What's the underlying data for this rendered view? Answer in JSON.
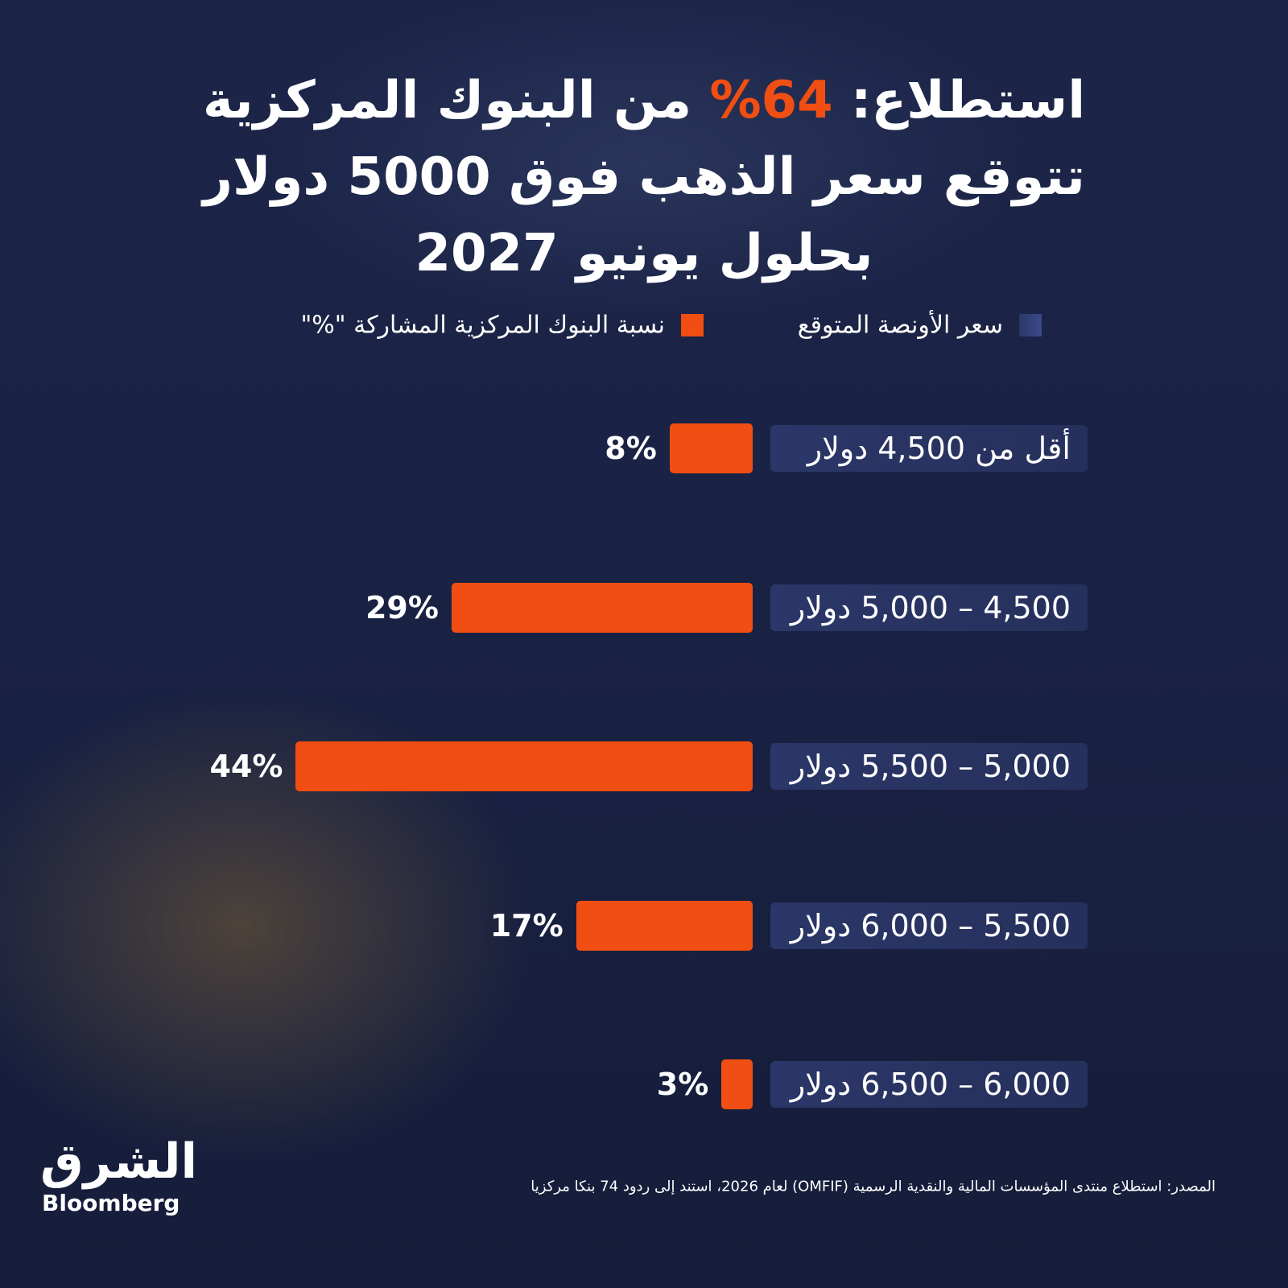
{
  "chart_data": {
    "type": "bar",
    "title_parts": [
      "استطلاع: ",
      "64%",
      " من البنوك المركزية تتوقع سعر الذهب فوق 5000 دولار بحلول يونيو 2027"
    ],
    "category_legend": {
      "name": "سعر الأونصة المتوقع",
      "color": "#2b3768"
    },
    "categories": [
      "أقل من 4,500 دولار",
      "4,500 – 5,000 دولار",
      "5,000 – 5,500 دولار",
      "5,500 – 6,000 دولار",
      "6,000 – 6,500 دولار"
    ],
    "series": [
      {
        "name": "نسبة البنوك المركزية المشاركة \"%\"",
        "color": "#f04e12",
        "values": [
          8,
          29,
          44,
          17,
          3
        ],
        "value_labels": [
          "8%",
          "29%",
          "44%",
          "17%",
          "3%"
        ]
      }
    ],
    "source": "المصدر: استطلاع منتدى المؤسسات المالية والنقدية الرسمية (OMFIF) لعام 2026، استند إلى ردود 74 بنكا مركزيا",
    "logo": {
      "arabic": "الشرق",
      "english": "Bloomberg"
    }
  }
}
